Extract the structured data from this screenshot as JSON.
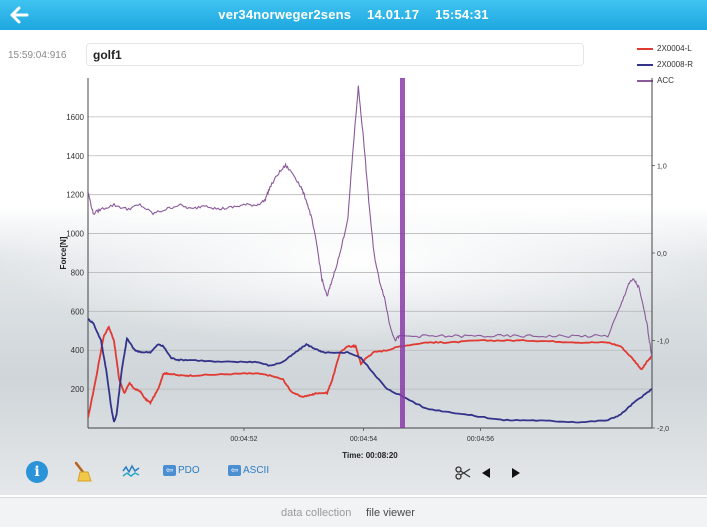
{
  "header": {
    "recording_name": "ver34norweger2sens",
    "date": "14.01.17",
    "time": "15:54:31",
    "back_icon": "arrow-left-icon"
  },
  "recording": {
    "start_time": "15:59:04:916",
    "label": "golf1"
  },
  "legend": [
    {
      "name": "2X0004-L",
      "color": "#e03a33"
    },
    {
      "name": "2X0008-R",
      "color": "#33338a"
    },
    {
      "name": "ACC",
      "color": "#8a5a9a"
    }
  ],
  "chart_data": {
    "type": "line",
    "ylabel": "Force[N]",
    "xlabel": "Time: 00:08:20",
    "ylim": [
      0,
      1800
    ],
    "y_ticks": [
      "200",
      "400",
      "600",
      "800",
      "1000",
      "1200",
      "1400",
      "1600"
    ],
    "y2lim": [
      -2.0,
      2.0
    ],
    "y2_ticks": [
      "1,0",
      "0,0",
      "-1,0",
      "-2,0"
    ],
    "x_ticks": [
      "00:04:52",
      "00:04:54",
      "00:04:56"
    ],
    "grid": true,
    "marker_time": "00:04:54.8",
    "series": [
      {
        "name": "2X0004-L",
        "color": "#e03a33",
        "axis": "left",
        "points": [
          [
            0,
            50
          ],
          [
            0.03,
            250
          ],
          [
            0.06,
            470
          ],
          [
            0.08,
            520
          ],
          [
            0.1,
            450
          ],
          [
            0.12,
            250
          ],
          [
            0.14,
            180
          ],
          [
            0.16,
            230
          ],
          [
            0.18,
            200
          ],
          [
            0.2,
            190
          ],
          [
            0.22,
            150
          ],
          [
            0.24,
            130
          ],
          [
            0.27,
            200
          ],
          [
            0.29,
            280
          ],
          [
            0.31,
            280
          ],
          [
            0.35,
            270
          ],
          [
            0.4,
            270
          ],
          [
            0.5,
            275
          ],
          [
            0.6,
            280
          ],
          [
            0.65,
            280
          ],
          [
            0.7,
            270
          ],
          [
            0.75,
            250
          ],
          [
            0.78,
            190
          ],
          [
            0.82,
            160
          ],
          [
            0.86,
            170
          ],
          [
            0.88,
            180
          ],
          [
            0.92,
            180
          ],
          [
            0.94,
            250
          ],
          [
            0.97,
            390
          ],
          [
            1.0,
            420
          ],
          [
            1.02,
            420
          ],
          [
            1.03,
            420
          ],
          [
            1.05,
            330
          ],
          [
            1.07,
            360
          ],
          [
            1.1,
            390
          ],
          [
            1.15,
            400
          ],
          [
            1.2,
            420
          ],
          [
            1.3,
            440
          ],
          [
            1.35,
            440
          ],
          [
            1.4,
            440
          ],
          [
            1.5,
            450
          ],
          [
            1.6,
            450
          ],
          [
            1.7,
            450
          ],
          [
            1.8,
            445
          ],
          [
            1.9,
            440
          ],
          [
            2.0,
            440
          ],
          [
            2.05,
            420
          ],
          [
            2.1,
            350
          ],
          [
            2.13,
            300
          ],
          [
            2.15,
            340
          ],
          [
            2.17,
            370
          ]
        ]
      },
      {
        "name": "2X0008-R",
        "color": "#33338a",
        "axis": "left",
        "points": [
          [
            0,
            560
          ],
          [
            0.02,
            540
          ],
          [
            0.05,
            450
          ],
          [
            0.07,
            300
          ],
          [
            0.09,
            100
          ],
          [
            0.1,
            30
          ],
          [
            0.11,
            70
          ],
          [
            0.13,
            300
          ],
          [
            0.15,
            460
          ],
          [
            0.18,
            400
          ],
          [
            0.2,
            390
          ],
          [
            0.24,
            390
          ],
          [
            0.27,
            430
          ],
          [
            0.29,
            420
          ],
          [
            0.32,
            360
          ],
          [
            0.35,
            350
          ],
          [
            0.4,
            350
          ],
          [
            0.5,
            340
          ],
          [
            0.6,
            340
          ],
          [
            0.65,
            340
          ],
          [
            0.7,
            320
          ],
          [
            0.75,
            340
          ],
          [
            0.8,
            390
          ],
          [
            0.84,
            430
          ],
          [
            0.87,
            410
          ],
          [
            0.9,
            390
          ],
          [
            0.95,
            385
          ],
          [
            1.0,
            390
          ],
          [
            1.05,
            360
          ],
          [
            1.1,
            280
          ],
          [
            1.15,
            200
          ],
          [
            1.2,
            170
          ],
          [
            1.3,
            100
          ],
          [
            1.4,
            80
          ],
          [
            1.5,
            60
          ],
          [
            1.6,
            40
          ],
          [
            1.7,
            40
          ],
          [
            1.8,
            35
          ],
          [
            1.9,
            30
          ],
          [
            2.0,
            40
          ],
          [
            2.05,
            70
          ],
          [
            2.1,
            130
          ],
          [
            2.15,
            180
          ],
          [
            2.17,
            200
          ]
        ]
      },
      {
        "name": "ACC",
        "color": "#8a5a9a",
        "axis": "right",
        "points": [
          [
            0,
            0.7
          ],
          [
            0.02,
            0.45
          ],
          [
            0.05,
            0.5
          ],
          [
            0.1,
            0.55
          ],
          [
            0.15,
            0.5
          ],
          [
            0.2,
            0.55
          ],
          [
            0.25,
            0.45
          ],
          [
            0.3,
            0.5
          ],
          [
            0.35,
            0.55
          ],
          [
            0.4,
            0.5
          ],
          [
            0.45,
            0.55
          ],
          [
            0.5,
            0.5
          ],
          [
            0.55,
            0.52
          ],
          [
            0.6,
            0.55
          ],
          [
            0.65,
            0.55
          ],
          [
            0.68,
            0.6
          ],
          [
            0.7,
            0.75
          ],
          [
            0.73,
            0.9
          ],
          [
            0.76,
            1.0
          ],
          [
            0.79,
            0.9
          ],
          [
            0.82,
            0.75
          ],
          [
            0.84,
            0.6
          ],
          [
            0.86,
            0.4
          ],
          [
            0.88,
            0.1
          ],
          [
            0.9,
            -0.3
          ],
          [
            0.92,
            -0.5
          ],
          [
            0.94,
            -0.3
          ],
          [
            0.97,
            0.0
          ],
          [
            1.0,
            0.4
          ],
          [
            1.02,
            1.2
          ],
          [
            1.04,
            1.9
          ],
          [
            1.06,
            1.3
          ],
          [
            1.08,
            0.6
          ],
          [
            1.1,
            0.0
          ],
          [
            1.12,
            -0.3
          ],
          [
            1.14,
            -0.5
          ],
          [
            1.16,
            -0.8
          ],
          [
            1.18,
            -1.0
          ],
          [
            1.2,
            -0.95
          ],
          [
            1.3,
            -0.95
          ],
          [
            1.4,
            -0.95
          ],
          [
            1.5,
            -0.95
          ],
          [
            1.6,
            -0.95
          ],
          [
            1.7,
            -0.95
          ],
          [
            1.8,
            -0.95
          ],
          [
            1.9,
            -0.95
          ],
          [
            2.0,
            -0.95
          ],
          [
            2.05,
            -0.6
          ],
          [
            2.08,
            -0.35
          ],
          [
            2.1,
            -0.3
          ],
          [
            2.12,
            -0.4
          ],
          [
            2.15,
            -0.8
          ],
          [
            2.17,
            -1.2
          ]
        ]
      }
    ]
  },
  "toolbar": {
    "info_label": "i",
    "pdo_label": "PDO",
    "ascii_label": "ASCII"
  },
  "nav": {
    "tab1": "data collection",
    "tab2": "file viewer"
  }
}
